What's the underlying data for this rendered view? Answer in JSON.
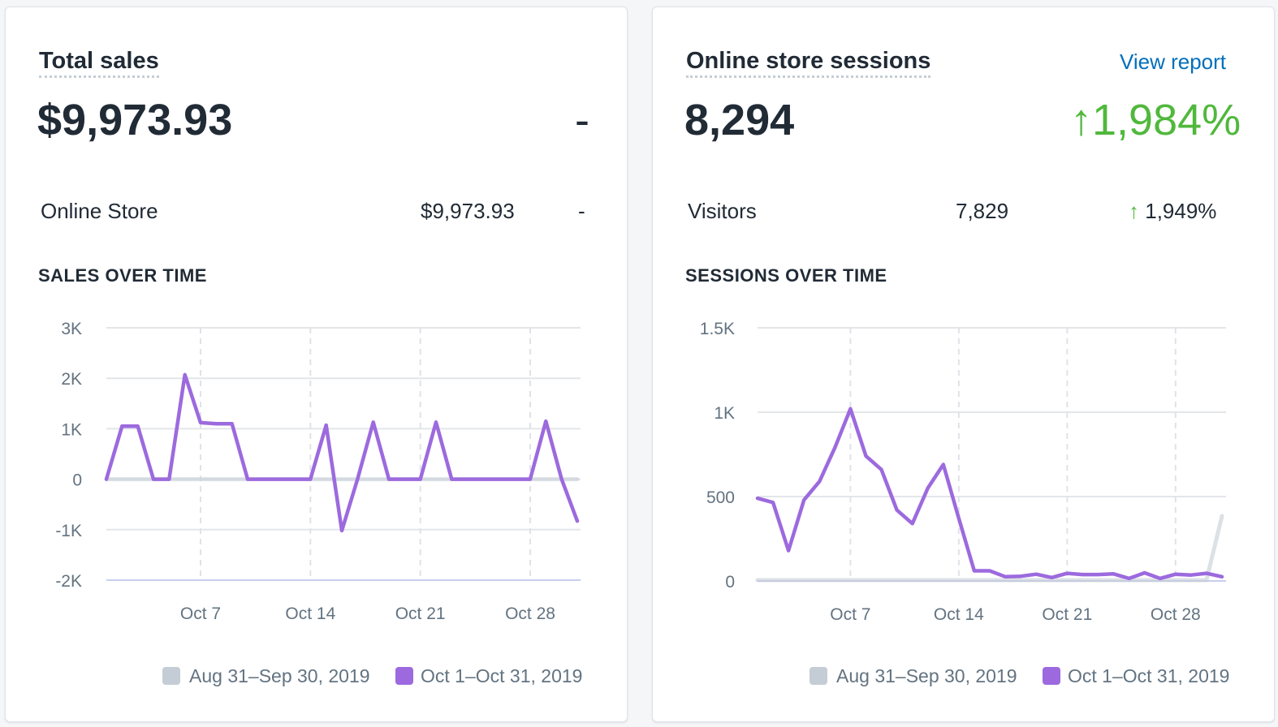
{
  "sales_card": {
    "title": "Total sales",
    "total": "$9,973.93",
    "change": "-",
    "rows": [
      {
        "label": "Online Store",
        "value": "$9,973.93",
        "change": "-"
      }
    ],
    "section_title": "SALES OVER TIME"
  },
  "sessions_card": {
    "title": "Online store sessions",
    "view_report": "View report",
    "total": "8,294",
    "change": "1,984%",
    "change_arrow": "↑",
    "rows": [
      {
        "label": "Visitors",
        "value": "7,829",
        "change_arrow": "↑",
        "change": "1,949%"
      }
    ],
    "section_title": "SESSIONS OVER TIME"
  },
  "colors": {
    "current": "#9c6ade",
    "previous": "#c4cdd5",
    "positive": "#50b83c",
    "link": "#006fbb"
  },
  "chart_data": [
    {
      "type": "line",
      "title": "SALES OVER TIME",
      "x": [
        "Oct 1",
        "Oct 2",
        "Oct 3",
        "Oct 4",
        "Oct 5",
        "Oct 6",
        "Oct 7",
        "Oct 8",
        "Oct 9",
        "Oct 10",
        "Oct 11",
        "Oct 12",
        "Oct 13",
        "Oct 14",
        "Oct 15",
        "Oct 16",
        "Oct 17",
        "Oct 18",
        "Oct 19",
        "Oct 20",
        "Oct 21",
        "Oct 22",
        "Oct 23",
        "Oct 24",
        "Oct 25",
        "Oct 26",
        "Oct 27",
        "Oct 28",
        "Oct 29",
        "Oct 30",
        "Oct 31"
      ],
      "x_tick_labels": [
        "Oct 7",
        "Oct 14",
        "Oct 21",
        "Oct 28"
      ],
      "y_tick_labels": [
        "3K",
        "2K",
        "1K",
        "0",
        "-1K",
        "-2K"
      ],
      "y_ticks": [
        3000,
        2000,
        1000,
        0,
        -1000,
        -2000
      ],
      "ylim": [
        -2000,
        3000
      ],
      "grid": true,
      "legend_position": "bottom-right",
      "series": [
        {
          "name": "Aug 31–Sep 30, 2019",
          "color": "#c4cdd5",
          "values": [
            0,
            0,
            0,
            0,
            0,
            0,
            0,
            0,
            0,
            0,
            0,
            0,
            0,
            0,
            0,
            0,
            0,
            0,
            0,
            0,
            0,
            0,
            0,
            0,
            0,
            0,
            0,
            0,
            0,
            0,
            0
          ]
        },
        {
          "name": "Oct 1–Oct 31, 2019",
          "color": "#9c6ade",
          "values": [
            0,
            1050,
            1050,
            0,
            0,
            2070,
            1120,
            1100,
            1100,
            0,
            0,
            0,
            0,
            0,
            1070,
            -1020,
            0,
            1130,
            0,
            0,
            0,
            1130,
            0,
            0,
            0,
            0,
            0,
            0,
            1150,
            0,
            -830
          ]
        }
      ]
    },
    {
      "type": "line",
      "title": "SESSIONS OVER TIME",
      "x": [
        "Oct 1",
        "Oct 2",
        "Oct 3",
        "Oct 4",
        "Oct 5",
        "Oct 6",
        "Oct 7",
        "Oct 8",
        "Oct 9",
        "Oct 10",
        "Oct 11",
        "Oct 12",
        "Oct 13",
        "Oct 14",
        "Oct 15",
        "Oct 16",
        "Oct 17",
        "Oct 18",
        "Oct 19",
        "Oct 20",
        "Oct 21",
        "Oct 22",
        "Oct 23",
        "Oct 24",
        "Oct 25",
        "Oct 26",
        "Oct 27",
        "Oct 28",
        "Oct 29",
        "Oct 30",
        "Oct 31"
      ],
      "x_tick_labels": [
        "Oct 7",
        "Oct 14",
        "Oct 21",
        "Oct 28"
      ],
      "y_tick_labels": [
        "1.5K",
        "1K",
        "500",
        "0"
      ],
      "y_ticks": [
        1500,
        1000,
        500,
        0
      ],
      "ylim": [
        0,
        1500
      ],
      "grid": true,
      "legend_position": "bottom-right",
      "series": [
        {
          "name": "Aug 31–Sep 30, 2019",
          "color": "#c4cdd5",
          "values": [
            5,
            5,
            5,
            5,
            5,
            5,
            5,
            5,
            5,
            5,
            5,
            5,
            5,
            5,
            5,
            5,
            5,
            5,
            5,
            5,
            5,
            5,
            5,
            5,
            5,
            5,
            5,
            5,
            5,
            5,
            385
          ]
        },
        {
          "name": "Oct 1–Oct 31, 2019",
          "color": "#9c6ade",
          "values": [
            490,
            465,
            180,
            480,
            590,
            790,
            1020,
            740,
            660,
            420,
            340,
            550,
            690,
            370,
            60,
            60,
            25,
            28,
            40,
            20,
            45,
            38,
            38,
            42,
            15,
            48,
            15,
            40,
            35,
            45,
            25
          ]
        }
      ]
    }
  ]
}
